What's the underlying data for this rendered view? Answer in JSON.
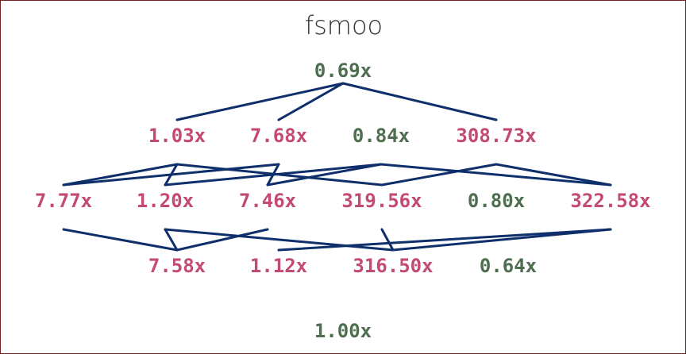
{
  "title": "fsmoo",
  "colors": {
    "slower": "#c24a73",
    "faster": "#4e6e50",
    "edge": "#0f2f6b",
    "border": "#7a1f1f"
  },
  "nodes": [
    {
      "id": "top",
      "label": "0.69x",
      "status": "faster"
    },
    {
      "id": "a1",
      "label": "1.03x",
      "status": "slower"
    },
    {
      "id": "a2",
      "label": "7.68x",
      "status": "slower"
    },
    {
      "id": "a3",
      "label": "0.84x",
      "status": "faster"
    },
    {
      "id": "a4",
      "label": "308.73x",
      "status": "slower"
    },
    {
      "id": "b1",
      "label": "7.77x",
      "status": "slower"
    },
    {
      "id": "b2",
      "label": "1.20x",
      "status": "slower"
    },
    {
      "id": "b3",
      "label": "7.46x",
      "status": "slower"
    },
    {
      "id": "b4",
      "label": "319.56x",
      "status": "slower"
    },
    {
      "id": "b5",
      "label": "0.80x",
      "status": "faster"
    },
    {
      "id": "b6",
      "label": "322.58x",
      "status": "slower"
    },
    {
      "id": "c1",
      "label": "7.58x",
      "status": "slower"
    },
    {
      "id": "c2",
      "label": "1.12x",
      "status": "slower"
    },
    {
      "id": "c3",
      "label": "316.50x",
      "status": "slower"
    },
    {
      "id": "c4",
      "label": "0.64x",
      "status": "faster"
    },
    {
      "id": "bottom",
      "label": "1.00x",
      "status": "faster"
    }
  ],
  "edges": [
    [
      "top",
      "a1"
    ],
    [
      "top",
      "a2"
    ],
    [
      "top",
      "a4"
    ],
    [
      "a1",
      "b1"
    ],
    [
      "a1",
      "b2"
    ],
    [
      "a1",
      "b4"
    ],
    [
      "a2",
      "b1"
    ],
    [
      "a2",
      "b3"
    ],
    [
      "a3",
      "b2"
    ],
    [
      "a3",
      "b3"
    ],
    [
      "a3",
      "b6"
    ],
    [
      "a4",
      "b4"
    ],
    [
      "a4",
      "b6"
    ],
    [
      "b1",
      "c1"
    ],
    [
      "b2",
      "c1"
    ],
    [
      "b2",
      "c3"
    ],
    [
      "b3",
      "c1"
    ],
    [
      "b4",
      "c3"
    ],
    [
      "b6",
      "c2"
    ],
    [
      "b6",
      "c3"
    ]
  ]
}
